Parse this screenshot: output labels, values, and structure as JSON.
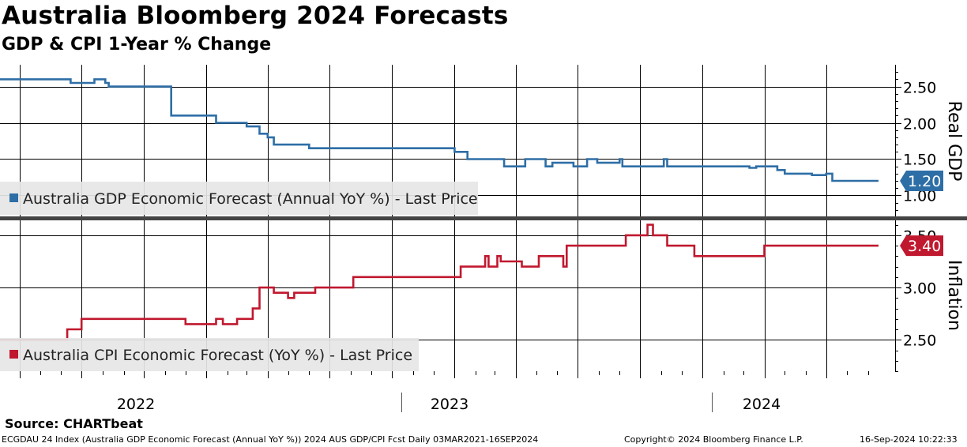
{
  "title": "Australia Bloomberg 2024 Forecasts",
  "subtitle": "GDP & CPI 1-Year % Change",
  "source": "Source:  CHARTbeat",
  "footer": {
    "left": "ECGDAU 24 Index (Australia GDP Economic Forecast (Annual YoY %)) 2024 AUS GDP/CPI Fcst  Daily 03MAR2021-16SEP2024",
    "middle": "Copyright© 2024 Bloomberg Finance L.P.",
    "right": "16-Sep-2024 10:22:33"
  },
  "colors": {
    "gdp": "#2e6ea6",
    "cpi": "#c0182f",
    "grid": "#000000",
    "divider": "#444444"
  },
  "chart_data": [
    {
      "type": "line",
      "panel": "top",
      "ylabel": "Real GDP",
      "ylim": [
        0.7,
        2.8
      ],
      "yticks": [
        1.0,
        1.5,
        2.0,
        2.5
      ],
      "ytick_labels": [
        "1.00",
        "1.50",
        "2.00",
        "2.50"
      ],
      "legend": "Australia GDP Economic Forecast (Annual YoY %) - Last Price",
      "last_value_label": "1.20",
      "color": "#2e6ea6",
      "x_labels": [
        "2022",
        "2023",
        "2024"
      ],
      "x_start": "2021-03-03",
      "x_end": "2024-09-16",
      "x": [
        "2021-03-03",
        "2021-06-01",
        "2021-06-15",
        "2021-07-01",
        "2021-07-20",
        "2021-08-01",
        "2021-08-05",
        "2021-08-10",
        "2021-11-01",
        "2021-11-10",
        "2022-01-10",
        "2022-01-15",
        "2022-01-25",
        "2022-02-01",
        "2022-02-20",
        "2022-03-01",
        "2022-03-20",
        "2022-04-01",
        "2022-04-10",
        "2022-06-01",
        "2023-01-01",
        "2023-01-20",
        "2023-03-01",
        "2023-03-15",
        "2023-04-01",
        "2023-04-15",
        "2023-04-20",
        "2023-05-15",
        "2023-05-20",
        "2023-05-25",
        "2023-06-20",
        "2023-06-25",
        "2023-07-10",
        "2023-07-15",
        "2023-07-25",
        "2023-07-30",
        "2023-08-10",
        "2023-09-01",
        "2023-09-05",
        "2023-11-01",
        "2023-11-05",
        "2023-11-10",
        "2024-03-01",
        "2024-03-10",
        "2024-03-20",
        "2024-04-10",
        "2024-04-20",
        "2024-05-01",
        "2024-06-01",
        "2024-06-10",
        "2024-07-01",
        "2024-07-10",
        "2024-09-16"
      ],
      "y": [
        2.6,
        2.6,
        2.55,
        2.55,
        2.6,
        2.6,
        2.55,
        2.5,
        2.5,
        2.1,
        2.1,
        2.0,
        2.0,
        2.0,
        2.0,
        1.95,
        1.85,
        1.8,
        1.7,
        1.65,
        1.6,
        1.5,
        1.5,
        1.4,
        1.4,
        1.5,
        1.5,
        1.4,
        1.4,
        1.45,
        1.45,
        1.4,
        1.4,
        1.5,
        1.5,
        1.45,
        1.45,
        1.5,
        1.4,
        1.4,
        1.5,
        1.4,
        1.4,
        1.38,
        1.4,
        1.4,
        1.35,
        1.3,
        1.3,
        1.28,
        1.3,
        1.2,
        1.2
      ]
    },
    {
      "type": "line",
      "panel": "bottom",
      "ylabel": "Inflation",
      "ylim": [
        2.2,
        3.65
      ],
      "yticks": [
        2.5,
        3.0,
        3.5
      ],
      "ytick_labels": [
        "2.50",
        "3.00",
        "3.50"
      ],
      "legend": "Australia CPI Economic Forecast (YoY %) - Last Price",
      "last_value_label": "3.40",
      "color": "#c0182f",
      "x": [
        "2021-03-03",
        "2021-06-01",
        "2021-06-10",
        "2021-07-01",
        "2021-11-01",
        "2021-12-01",
        "2022-01-10",
        "2022-01-15",
        "2022-01-25",
        "2022-02-15",
        "2022-02-20",
        "2022-03-10",
        "2022-03-20",
        "2022-04-01",
        "2022-04-10",
        "2022-05-01",
        "2022-05-10",
        "2022-06-01",
        "2022-06-10",
        "2022-08-01",
        "2022-08-05",
        "2023-01-01",
        "2023-01-10",
        "2023-02-01",
        "2023-02-15",
        "2023-02-20",
        "2023-03-01",
        "2023-03-05",
        "2023-03-10",
        "2023-04-01",
        "2023-04-10",
        "2023-05-01",
        "2023-05-05",
        "2023-06-01",
        "2023-06-10",
        "2023-06-15",
        "2023-08-10",
        "2023-09-10",
        "2023-10-10",
        "2023-10-12",
        "2023-10-20",
        "2023-11-01",
        "2023-11-10",
        "2023-12-20",
        "2024-01-10",
        "2024-03-20",
        "2024-04-01",
        "2024-09-16"
      ],
      "y": [
        2.5,
        2.5,
        2.6,
        2.7,
        2.7,
        2.65,
        2.65,
        2.7,
        2.65,
        2.7,
        2.7,
        2.8,
        3.0,
        3.0,
        2.95,
        2.9,
        2.95,
        2.95,
        3.0,
        3.0,
        3.1,
        3.1,
        3.2,
        3.2,
        3.3,
        3.2,
        3.2,
        3.3,
        3.25,
        3.25,
        3.2,
        3.2,
        3.3,
        3.3,
        3.2,
        3.4,
        3.4,
        3.5,
        3.5,
        3.6,
        3.5,
        3.5,
        3.4,
        3.3,
        3.3,
        3.3,
        3.4,
        3.4
      ]
    }
  ]
}
